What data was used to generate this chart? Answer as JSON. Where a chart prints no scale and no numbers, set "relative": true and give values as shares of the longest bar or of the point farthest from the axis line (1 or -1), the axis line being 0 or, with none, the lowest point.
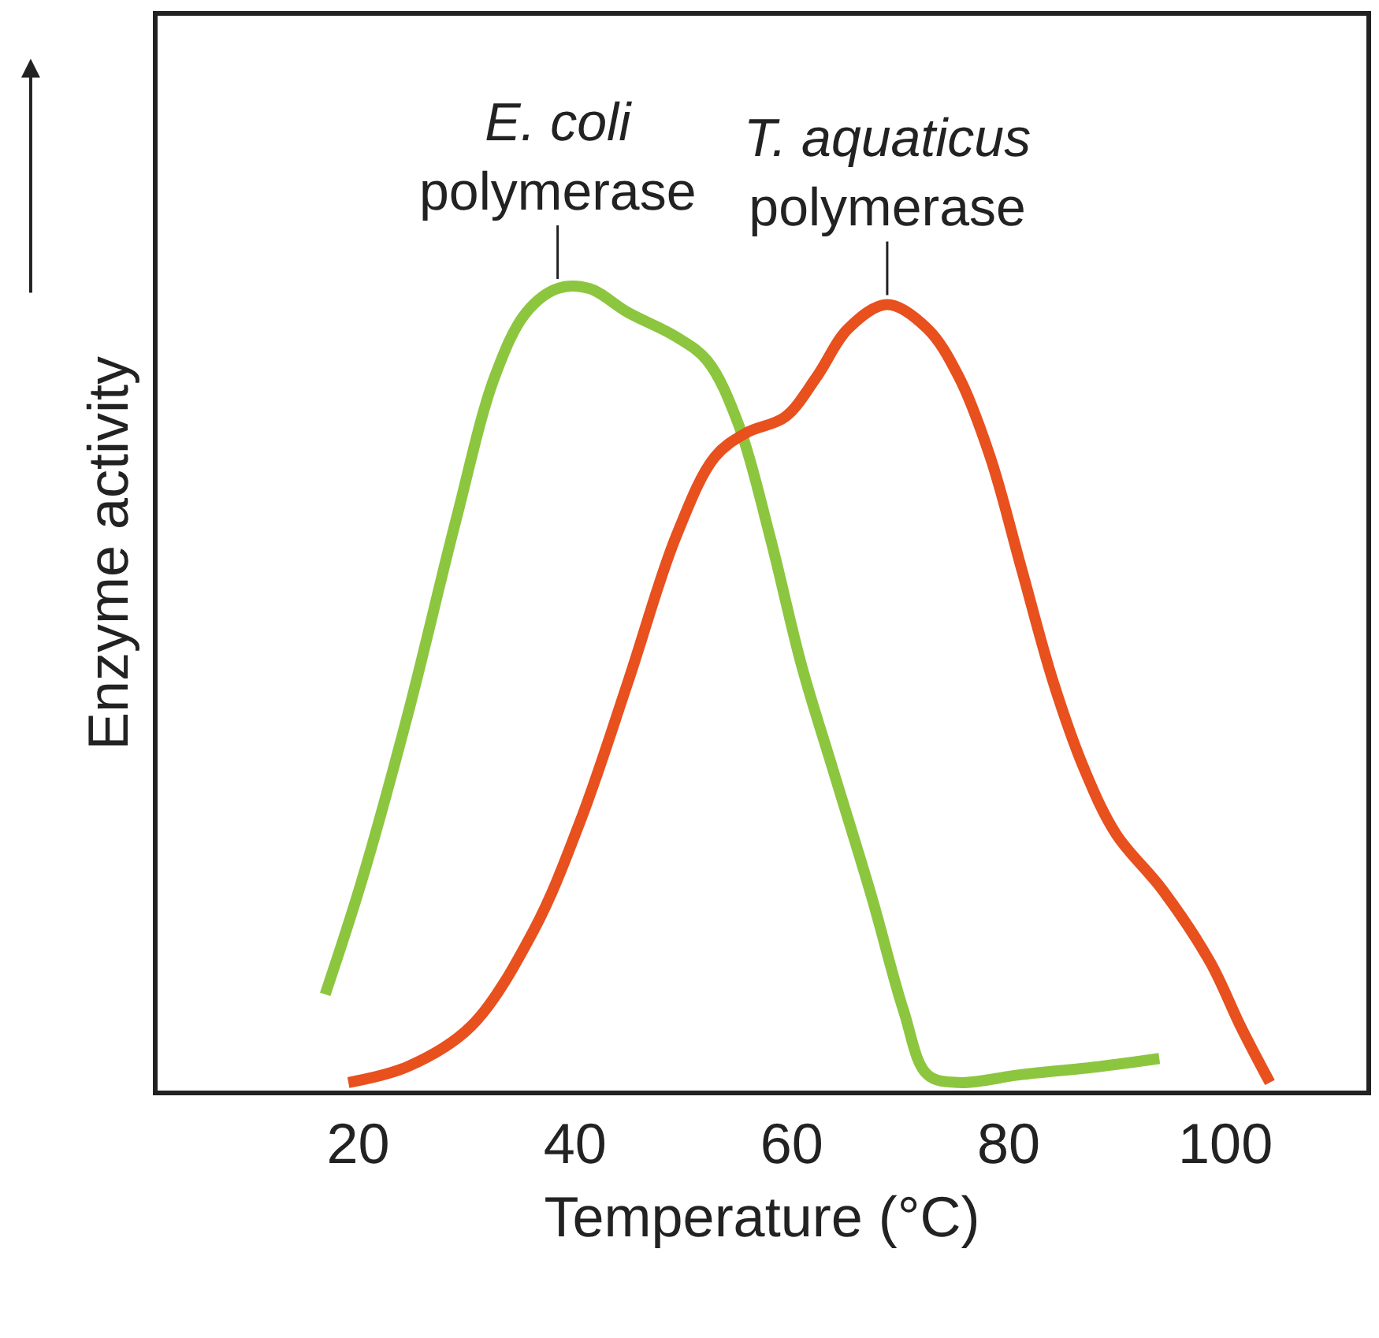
{
  "chart_data": {
    "type": "line",
    "relative": true,
    "xlabel": "Temperature (°C)",
    "ylabel": "Enzyme activity",
    "xlim": [
      1.5,
      113
    ],
    "xticks": [
      20,
      40,
      60,
      80,
      100
    ],
    "legend": false,
    "marker": "none",
    "line_style": "solid",
    "series": [
      {
        "name": "E. coli\npolymerase",
        "color": "#8cc63f",
        "x": [
          16.96,
          20.3,
          24.6,
          29.0,
          32.6,
          35.5,
          38.4,
          41.3,
          44.9,
          49.3,
          52.2,
          55.1,
          58.0,
          60.9,
          63.8,
          67.4,
          70.3,
          72.5,
          75.4,
          81.2,
          88.4,
          93.9
        ],
        "values": [
          0.12,
          0.26,
          0.47,
          0.71,
          0.89,
          0.97,
          1.0,
          1.0,
          0.97,
          0.94,
          0.91,
          0.83,
          0.69,
          0.53,
          0.4,
          0.24,
          0.1,
          0.02,
          0.01,
          0.02,
          0.03,
          0.04
        ]
      },
      {
        "name": "T. aquaticus\npolymerase",
        "color": "#e8501e",
        "x": [
          19.1,
          24.6,
          30.4,
          36.2,
          40.6,
          44.9,
          49.3,
          52.9,
          55.8,
          59.4,
          62.3,
          65.2,
          68.8,
          72.5,
          75.4,
          78.3,
          81.2,
          84.1,
          87.0,
          89.9,
          94.2,
          98.6,
          101.4,
          104.1
        ],
        "values": [
          0.01,
          0.03,
          0.08,
          0.2,
          0.34,
          0.51,
          0.69,
          0.79,
          0.82,
          0.84,
          0.89,
          0.95,
          0.98,
          0.95,
          0.89,
          0.79,
          0.65,
          0.51,
          0.4,
          0.32,
          0.25,
          0.16,
          0.08,
          0.01
        ]
      }
    ]
  }
}
